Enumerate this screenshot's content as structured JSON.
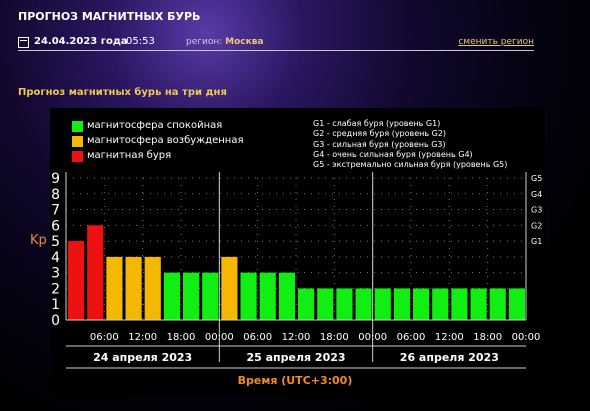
{
  "header": {
    "title": "ПРОГНОЗ МАГНИТНЫХ БУРЬ"
  },
  "datebar": {
    "date": "24.04.2023 года",
    "time": "05:53",
    "region_label": "регион:",
    "region_value": "Москва",
    "change_region": "сменить регион"
  },
  "section_title": "Прогноз магнитных бурь на три дня",
  "legend": {
    "calm": "магнитосфера спокойная",
    "excited": "магнитосфера возбужденная",
    "storm": "магнитная буря"
  },
  "g_legend": [
    "G1 - слабая буря (уровень G1)",
    "G2 - средняя буря (уровень G2)",
    "G3 - сильная буря (уровень G3)",
    "G4 - очень сильная буря (уровень G4)",
    "G5 - экстремально сильная буря (уровень G5)"
  ],
  "colors": {
    "calm": "#11ee11",
    "excited": "#f5b800",
    "storm": "#ee1111"
  },
  "chart_data": {
    "type": "bar",
    "ylabel": "Kp",
    "xlabel": "Время (UTC+3:00)",
    "ylim": [
      0,
      9
    ],
    "yticks": [
      "0",
      "1",
      "2",
      "3",
      "4",
      "5",
      "6",
      "7",
      "8",
      "9"
    ],
    "right_ticks": [
      "G1",
      "G2",
      "G3",
      "G4",
      "G5"
    ],
    "right_tick_values": [
      5,
      6,
      7,
      8,
      9
    ],
    "x_tick_labels": [
      "06:00",
      "12:00",
      "18:00",
      "00:00",
      "06:00",
      "12:00",
      "18:00",
      "00:00",
      "06:00",
      "12:00",
      "18:00",
      "00:00"
    ],
    "days": [
      "24 апреля 2023",
      "25 апреля 2023",
      "26 апреля 2023"
    ],
    "values": [
      5,
      6,
      4,
      4,
      4,
      3,
      3,
      3,
      4,
      3,
      3,
      3,
      2,
      2,
      2,
      2,
      2,
      2,
      2,
      2,
      2,
      2,
      2,
      2
    ]
  }
}
